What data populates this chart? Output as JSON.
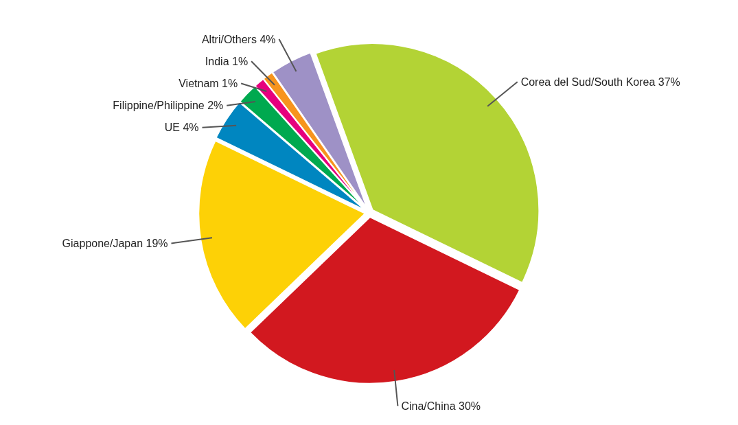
{
  "chart_data": {
    "type": "pie",
    "categories": [
      "Corea del Sud/South Korea",
      "Cina/China",
      "Giappone/Japan",
      "UE",
      "Filippine/Philippine",
      "Vietnam",
      "India",
      "Altri/Others"
    ],
    "values": [
      37,
      30,
      19,
      4,
      2,
      1,
      1,
      4
    ],
    "value_labels": [
      "37%",
      "30%",
      "19%",
      "4%",
      "2%",
      "1%",
      "1%",
      "4%"
    ],
    "colors": [
      "#b3d335",
      "#d2181f",
      "#fdd106",
      "#0086c0",
      "#00a94f",
      "#e6007e",
      "#f7941d",
      "#9e91c6"
    ]
  }
}
